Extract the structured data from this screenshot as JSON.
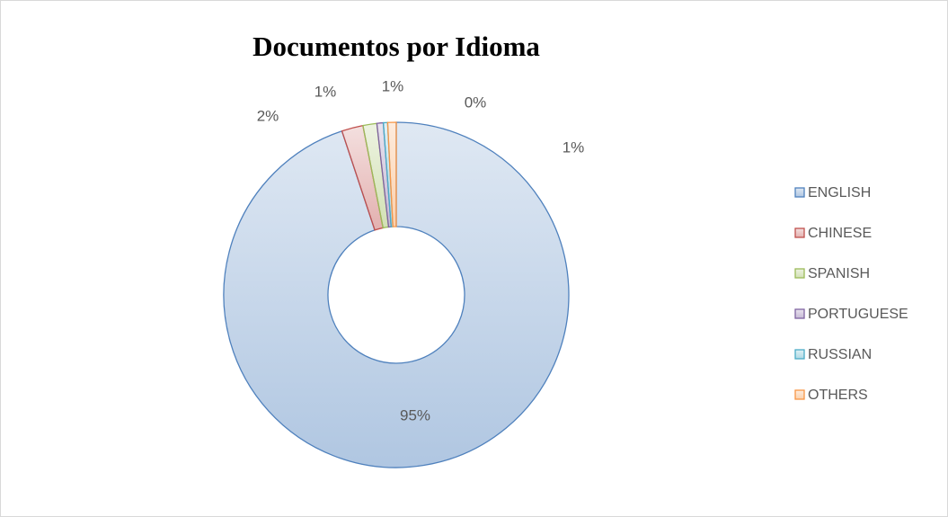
{
  "chart_data": {
    "type": "donut",
    "title": "Documentos por Idioma",
    "categories": [
      "ENGLISH",
      "CHINESE",
      "SPANISH",
      "PORTUGUESE",
      "RUSSIAN",
      "OTHERS"
    ],
    "values": [
      94.9,
      2.0,
      1.3,
      0.6,
      0.4,
      0.8
    ],
    "value_labels": [
      "95%",
      "2%",
      "1%",
      "1%",
      "0%",
      "1%"
    ],
    "colors": [
      "#4f81bd",
      "#c0504d",
      "#9bbb59",
      "#8064a2",
      "#4bacc6",
      "#f79646"
    ],
    "legend": "right"
  }
}
